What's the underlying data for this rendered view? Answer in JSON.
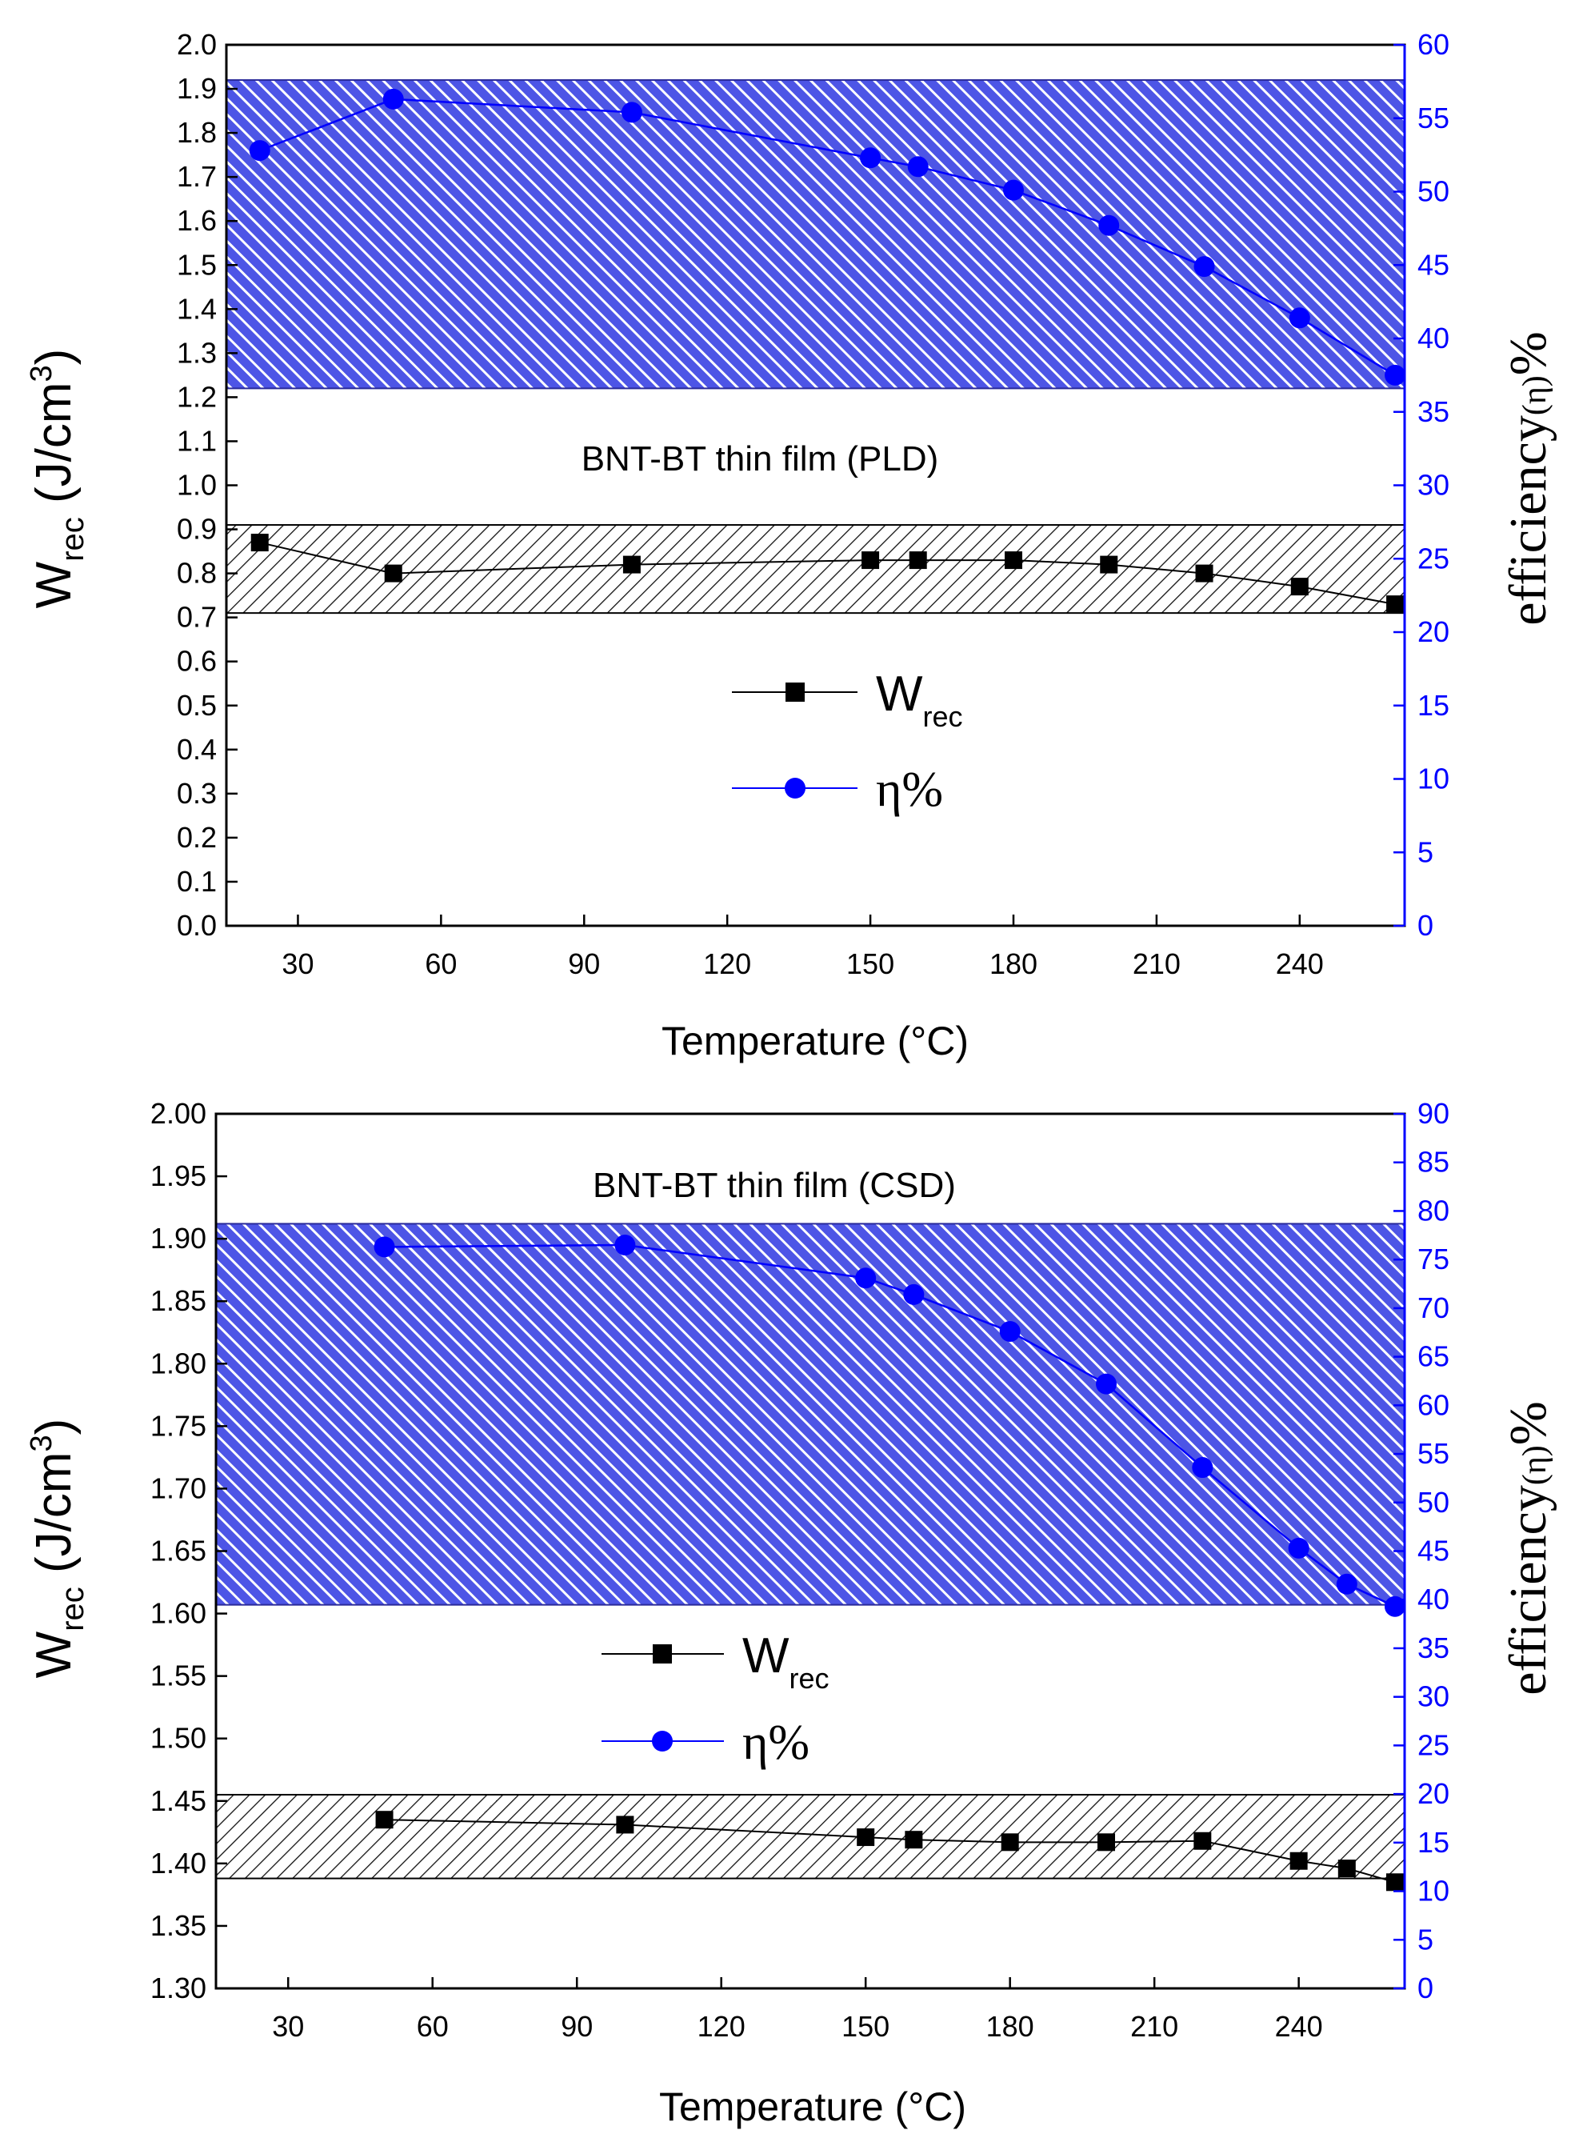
{
  "colors": {
    "left_axis": "#000000",
    "right_axis": "#0000ff",
    "w_series": "#000000",
    "eta_series": "#0000ff",
    "band_w": "#000000",
    "band_eta": "#0000ff"
  },
  "chart_data": [
    {
      "type": "line",
      "panel": "top",
      "annotation": "BNT-BT thin film (PLD)",
      "xlabel": "Temperature (°C)",
      "ylabel": {
        "main": "W",
        "sub": "rec",
        "unit_pre": " (J/cm",
        "sup": "3",
        "unit_post": ")"
      },
      "y2label": {
        "main": "efficiency",
        "sym": "(η)",
        "post": "%"
      },
      "xlim": [
        15,
        262
      ],
      "xticks": [
        30,
        60,
        90,
        120,
        150,
        180,
        210,
        240
      ],
      "ylim": [
        0.0,
        2.0
      ],
      "yticks": [
        "0.0",
        "0.1",
        "0.2",
        "0.3",
        "0.4",
        "0.5",
        "0.6",
        "0.7",
        "0.8",
        "0.9",
        "1.0",
        "1.1",
        "1.2",
        "1.3",
        "1.4",
        "1.5",
        "1.6",
        "1.7",
        "1.8",
        "1.9",
        "2.0"
      ],
      "y2lim": [
        0,
        60
      ],
      "y2ticks": [
        "0",
        "5",
        "10",
        "15",
        "20",
        "25",
        "30",
        "35",
        "40",
        "45",
        "50",
        "55",
        "60"
      ],
      "bands": [
        {
          "axis": "left",
          "from": 0.71,
          "to": 0.91,
          "color": "black"
        },
        {
          "axis": "left",
          "from": 1.22,
          "to": 1.92,
          "color": "blue"
        }
      ],
      "legend": {
        "position": "center",
        "w_label": "W",
        "w_sub": "rec",
        "eta_label": "η%"
      },
      "series": [
        {
          "name": "Wrec",
          "axis": "left",
          "marker": "square",
          "x": [
            22,
            50,
            100,
            150,
            160,
            180,
            200,
            220,
            240,
            260
          ],
          "values": [
            0.87,
            0.8,
            0.82,
            0.83,
            0.83,
            0.83,
            0.82,
            0.8,
            0.77,
            0.73
          ]
        },
        {
          "name": "η%",
          "axis": "right",
          "marker": "circle",
          "x": [
            22,
            50,
            100,
            150,
            160,
            180,
            200,
            220,
            240,
            260
          ],
          "values": [
            52.8,
            56.3,
            55.4,
            52.3,
            51.7,
            50.1,
            47.7,
            44.9,
            41.4,
            37.5
          ]
        }
      ]
    },
    {
      "type": "line",
      "panel": "bottom",
      "annotation": "BNT-BT thin film (CSD)",
      "xlabel": "Temperature (°C)",
      "ylabel": {
        "main": "W",
        "sub": "rec",
        "unit_pre": " (J/cm",
        "sup": "3",
        "unit_post": ")"
      },
      "y2label": {
        "main": "efficiency",
        "sym": "(η)",
        "post": "%"
      },
      "xlim": [
        15,
        262
      ],
      "xticks": [
        30,
        60,
        90,
        120,
        150,
        180,
        210,
        240
      ],
      "ylim": [
        1.3,
        2.0
      ],
      "yticks": [
        "1.30",
        "1.35",
        "1.40",
        "1.45",
        "1.50",
        "1.55",
        "1.60",
        "1.65",
        "1.70",
        "1.75",
        "1.80",
        "1.85",
        "1.90",
        "1.95",
        "2.00"
      ],
      "y2lim": [
        0,
        90
      ],
      "y2ticks": [
        "0",
        "5",
        "10",
        "15",
        "20",
        "25",
        "30",
        "35",
        "40",
        "45",
        "50",
        "55",
        "60",
        "65",
        "70",
        "75",
        "80",
        "85",
        "90"
      ],
      "bands": [
        {
          "axis": "left",
          "from": 1.388,
          "to": 1.455,
          "color": "black"
        },
        {
          "axis": "left",
          "from": 1.607,
          "to": 1.912,
          "color": "blue"
        }
      ],
      "legend": {
        "position": "center-left",
        "w_label": "W",
        "w_sub": "rec",
        "eta_label": "η%"
      },
      "series": [
        {
          "name": "Wrec",
          "axis": "left",
          "marker": "square",
          "x": [
            50,
            100,
            150,
            160,
            180,
            200,
            220,
            240,
            250,
            260
          ],
          "values": [
            1.435,
            1.431,
            1.421,
            1.419,
            1.417,
            1.417,
            1.418,
            1.402,
            1.396,
            1.385
          ]
        },
        {
          "name": "η%",
          "axis": "right",
          "marker": "circle",
          "x": [
            50,
            100,
            150,
            160,
            180,
            200,
            220,
            240,
            250,
            260
          ],
          "values": [
            76.3,
            76.5,
            73.1,
            71.4,
            67.6,
            62.2,
            53.6,
            45.3,
            41.6,
            39.3
          ]
        }
      ]
    }
  ]
}
